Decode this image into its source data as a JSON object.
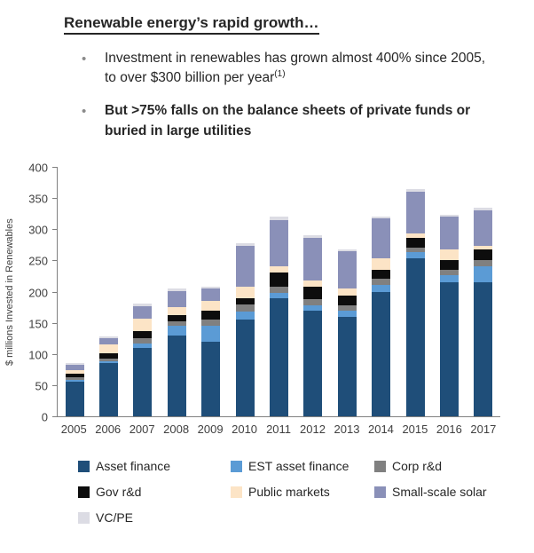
{
  "header": {
    "title": "Renewable energy’s rapid growth…",
    "bullet_marker": "•",
    "bullet1_text": "Investment in renewables has grown almost 400% since 2005, to over $300 billion per year",
    "bullet1_superscript": "(1)",
    "bullet2_text": "But >75% falls on the balance sheets of private funds or buried in large utilities"
  },
  "chart_data": {
    "type": "bar",
    "stacked": true,
    "title": "",
    "xlabel": "",
    "ylabel": "$ millions Invested in Renewables",
    "ylim": [
      0,
      400
    ],
    "yticks": [
      0,
      50,
      100,
      150,
      200,
      250,
      300,
      350,
      400
    ],
    "grid": false,
    "legend_position": "bottom",
    "categories": [
      "2005",
      "2006",
      "2007",
      "2008",
      "2009",
      "2010",
      "2011",
      "2012",
      "2013",
      "2014",
      "2015",
      "2016",
      "2017"
    ],
    "series": [
      {
        "name": "Asset finance",
        "color": "#1F4E79",
        "values": [
          55,
          85,
          110,
          130,
          120,
          155,
          190,
          170,
          160,
          200,
          253,
          215,
          215
        ]
      },
      {
        "name": "EST asset finance",
        "color": "#5B9BD5",
        "values": [
          4,
          4,
          7,
          15,
          25,
          13,
          8,
          8,
          10,
          10,
          10,
          12,
          25
        ]
      },
      {
        "name": "Corp r&d",
        "color": "#808080",
        "values": [
          4,
          4,
          8,
          8,
          10,
          12,
          10,
          10,
          8,
          10,
          8,
          8,
          10
        ]
      },
      {
        "name": "Gov r&d",
        "color": "#0D0D0D",
        "values": [
          6,
          8,
          12,
          10,
          15,
          10,
          22,
          20,
          15,
          15,
          15,
          15,
          18
        ]
      },
      {
        "name": "Public markets",
        "color": "#FCE4C6",
        "values": [
          5,
          15,
          20,
          12,
          15,
          18,
          10,
          10,
          12,
          18,
          8,
          18,
          5
        ]
      },
      {
        "name": "Small-scale solar",
        "color": "#8A90B8",
        "values": [
          9,
          10,
          20,
          26,
          20,
          65,
          75,
          68,
          60,
          64,
          66,
          52,
          57
        ]
      },
      {
        "name": "VC/PE",
        "color": "#DCDCE4",
        "values": [
          2,
          2,
          4,
          4,
          3,
          5,
          6,
          4,
          3,
          4,
          5,
          3,
          4
        ]
      }
    ]
  }
}
